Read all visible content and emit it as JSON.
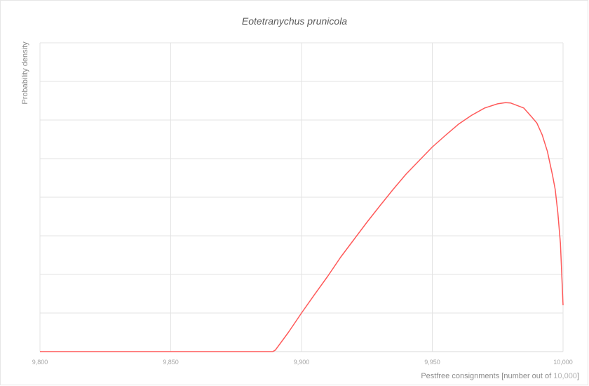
{
  "chart_data": {
    "type": "line",
    "title": "Eotetranychus prunicola",
    "ylabel": "Probability density",
    "xlabel": "Pestfree consignments [number out of",
    "xlabel_max": "10,000",
    "xlabel_close": "]",
    "xlim": [
      9800,
      10000
    ],
    "x_ticks": [
      9800,
      9850,
      9900,
      9950,
      10000
    ],
    "x_tick_labels": [
      "9,800",
      "9,850",
      "9,900",
      "9,950",
      "10,000"
    ],
    "ylim": [
      0,
      8
    ],
    "y_gridlines": [
      1,
      2,
      3,
      4,
      5,
      6,
      7,
      8
    ],
    "y_tick_labels_shown": false,
    "grid": true,
    "series": [
      {
        "color": "#ff5a5a",
        "x": [
          9800,
          9850,
          9889,
          9890,
          9895,
          9900,
          9905,
          9910,
          9915,
          9920,
          9925,
          9930,
          9935,
          9940,
          9945,
          9950,
          9955,
          9960,
          9965,
          9970,
          9975,
          9978,
          9980,
          9985,
          9988,
          9990,
          9992,
          9994,
          9996,
          9997,
          9998,
          9999,
          9999.5,
          10000
        ],
        "y": [
          0,
          0,
          0,
          0.04,
          0.5,
          1.0,
          1.48,
          1.95,
          2.45,
          2.9,
          3.35,
          3.78,
          4.2,
          4.6,
          4.95,
          5.3,
          5.6,
          5.89,
          6.12,
          6.31,
          6.42,
          6.45,
          6.44,
          6.31,
          6.08,
          5.92,
          5.62,
          5.19,
          4.56,
          4.2,
          3.6,
          2.8,
          2.0,
          1.2
        ]
      }
    ]
  }
}
